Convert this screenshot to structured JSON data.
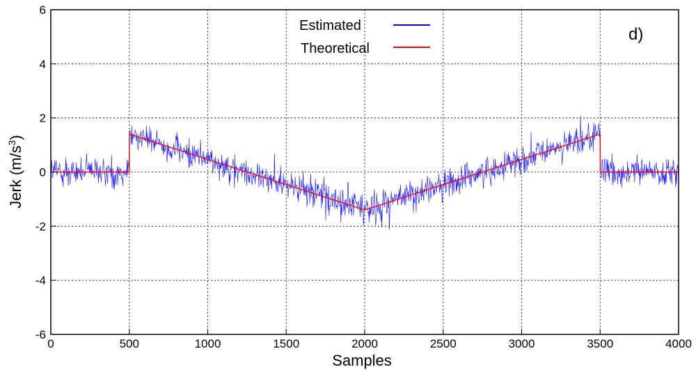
{
  "chart_data": {
    "type": "line",
    "panel_label": "d)",
    "xlabel": "Samples",
    "ylabel": "Jerk (m/s",
    "ylabel_superscript": "3",
    "ylabel_suffix": ")",
    "xlim": [
      0,
      4000
    ],
    "ylim": [
      -6,
      6
    ],
    "grid": true,
    "legend_position": "top-center",
    "x_ticks": [
      0,
      500,
      1000,
      1500,
      2000,
      2500,
      3000,
      3500,
      4000
    ],
    "y_ticks": [
      -6,
      -4,
      -2,
      0,
      2,
      4,
      6
    ],
    "x_tick_labels": [
      "0",
      "500",
      "1000",
      "1500",
      "2000",
      "2500",
      "3000",
      "3500",
      "4000"
    ],
    "y_tick_labels": [
      "-6",
      "-4",
      "-2",
      "0",
      "2",
      "4",
      "6"
    ],
    "series": [
      {
        "name": "Estimated",
        "color": "#0000ff",
        "style": "noisy signal around theoretical curve",
        "noise_amplitude": 0.55,
        "x": [
          0,
          500,
          501,
          2000,
          3500,
          3501,
          4000
        ],
        "values": [
          0,
          0,
          1.4,
          -1.4,
          1.4,
          0,
          0
        ]
      },
      {
        "name": "Theoretical",
        "color": "#ff0000",
        "x": [
          0,
          500,
          501,
          2000,
          3500,
          3501,
          4000
        ],
        "values": [
          0,
          0,
          1.4,
          -1.4,
          1.4,
          0,
          0
        ]
      }
    ]
  }
}
